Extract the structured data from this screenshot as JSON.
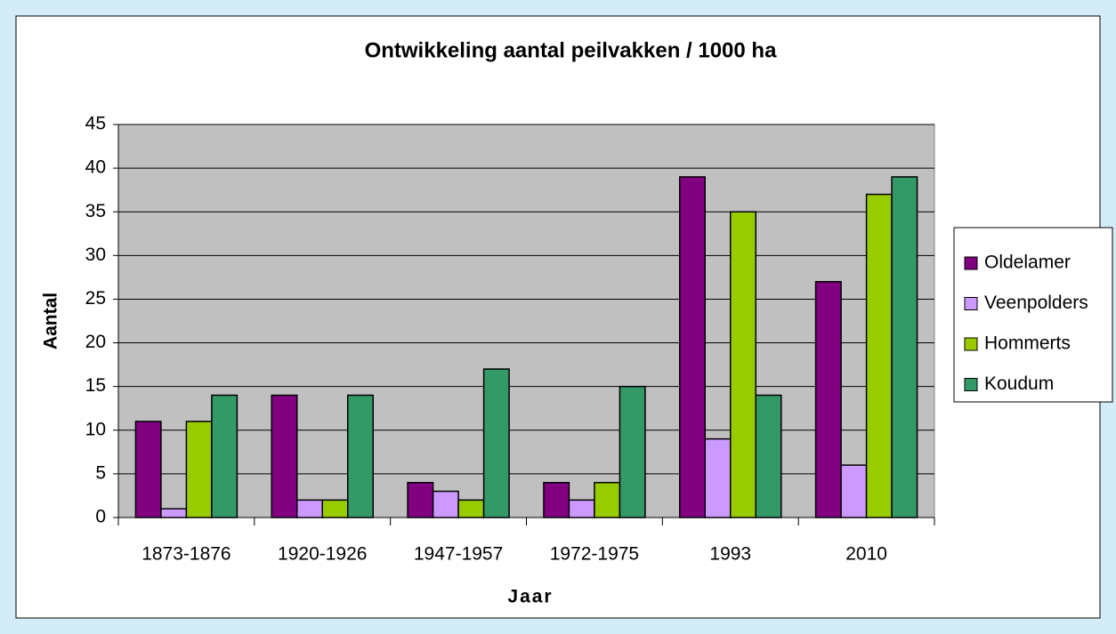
{
  "chart_data": {
    "type": "bar",
    "title": "Ontwikkeling aantal peilvakken / 1000 ha",
    "x_label": "Jaar",
    "y_label": "Aantal",
    "categories": [
      "1873-1876",
      "1920-1926",
      "1947-1957",
      "1972-1975",
      "1993",
      "2010"
    ],
    "series": [
      {
        "name": "Oldelamer",
        "color": "#800080",
        "values": [
          11,
          14,
          4,
          4,
          39,
          27
        ]
      },
      {
        "name": "Veenpolders",
        "color": "#cc99ff",
        "values": [
          1,
          2,
          3,
          2,
          9,
          6
        ]
      },
      {
        "name": "Hommerts",
        "color": "#99cc00",
        "values": [
          11,
          2,
          2,
          4,
          35,
          37
        ]
      },
      {
        "name": "Koudum",
        "color": "#339966",
        "values": [
          14,
          14,
          17,
          15,
          14,
          39
        ]
      }
    ],
    "ylim": [
      0,
      45
    ],
    "yticks": [
      0,
      5,
      10,
      15,
      20,
      25,
      30,
      35,
      40,
      45
    ],
    "grid": true,
    "legend": "right"
  }
}
